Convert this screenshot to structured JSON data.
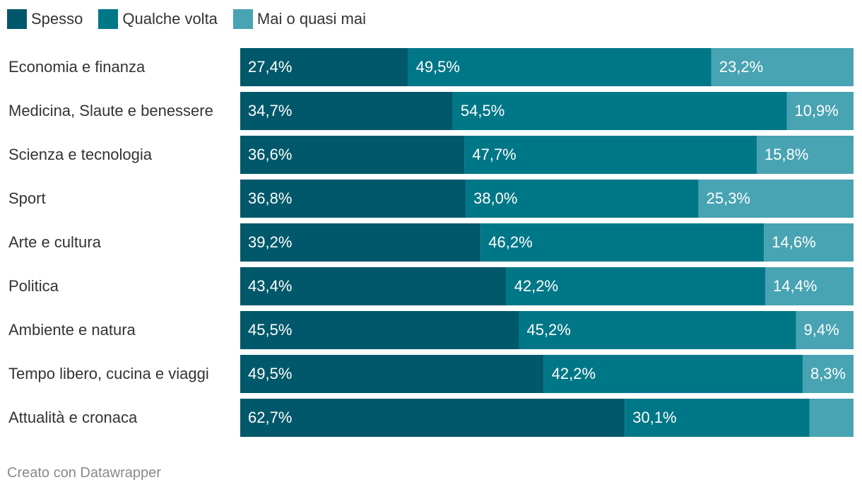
{
  "legend": {
    "items": [
      {
        "label": "Spesso",
        "color": "#00586a"
      },
      {
        "label": "Qualche volta",
        "color": "#007787"
      },
      {
        "label": "Mai o quasi mai",
        "color": "#48a3b2"
      }
    ]
  },
  "footer": {
    "credit": "Creato con Datawrapper"
  },
  "chart_data": {
    "type": "bar",
    "orientation": "horizontal",
    "stacked": true,
    "categories": [
      "Economia e finanza",
      "Medicina, Slaute e benessere",
      "Scienza e tecnologia",
      "Sport",
      "Arte e cultura",
      "Politica",
      "Ambiente e natura",
      "Tempo libero, cucina e viaggi",
      "Attualità e cronaca"
    ],
    "series": [
      {
        "name": "Spesso",
        "color": "#00586a",
        "values": [
          27.4,
          34.7,
          36.6,
          36.8,
          39.2,
          43.4,
          45.5,
          49.5,
          62.7
        ],
        "labels": [
          "27,4%",
          "34,7%",
          "36,6%",
          "36,8%",
          "39,2%",
          "43,4%",
          "45,5%",
          "49,5%",
          "62,7%"
        ]
      },
      {
        "name": "Qualche volta",
        "color": "#007787",
        "values": [
          49.5,
          54.5,
          47.7,
          38.0,
          46.2,
          42.2,
          45.2,
          42.2,
          30.1
        ],
        "labels": [
          "49,5%",
          "54,5%",
          "47,7%",
          "38,0%",
          "46,2%",
          "42,2%",
          "45,2%",
          "42,2%",
          "30,1%"
        ]
      },
      {
        "name": "Mai o quasi mai",
        "color": "#48a3b2",
        "values": [
          23.2,
          10.9,
          15.8,
          25.3,
          14.6,
          14.4,
          9.4,
          8.3,
          7.2
        ],
        "labels": [
          "23,2%",
          "10,9%",
          "15,8%",
          "25,3%",
          "14,6%",
          "14,4%",
          "9,4%",
          "8,3%",
          ""
        ]
      }
    ],
    "xlim": [
      0,
      100
    ],
    "grid": false,
    "legend_position": "top-left"
  }
}
